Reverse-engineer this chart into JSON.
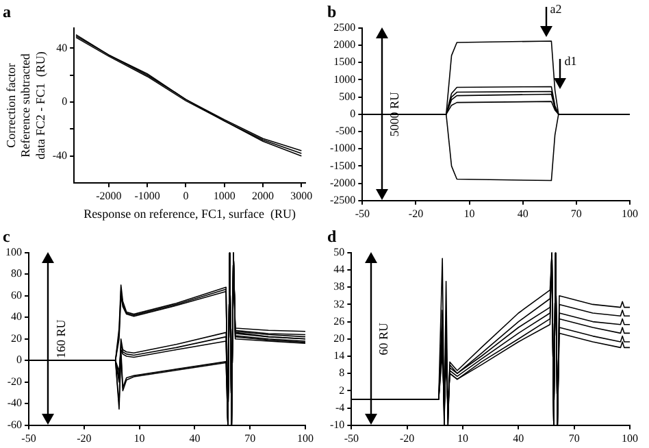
{
  "chart_data": [
    {
      "type": "line",
      "title": "a",
      "xlabel": "Response on reference, FC1, surface  (RU)",
      "ylabel": "Correction factor\nReference subtracted\ndata FC2 - FC1  (RU)",
      "x": [
        -2850,
        -2000,
        -1000,
        0,
        1000,
        2000,
        3000
      ],
      "xlim": [
        -2900,
        3100
      ],
      "xticks": [
        -2000,
        -1000,
        0,
        1000,
        2000,
        3000
      ],
      "ylim": [
        -60,
        55
      ],
      "yticks": [
        {
          "value": -40,
          "label": "-40"
        },
        {
          "value": -20,
          "label": null
        },
        0,
        {
          "value": 20,
          "label": null
        },
        40
      ],
      "grid": false,
      "legend": false,
      "marker": "none",
      "line_style": "solid",
      "series": [
        {
          "color": "#000000",
          "values": [
            50,
            35,
            21,
            2,
            -13,
            -27,
            -36
          ]
        },
        {
          "color": "#000000",
          "values": [
            49,
            35,
            20,
            2,
            -14,
            -28,
            -38
          ]
        },
        {
          "color": "#000000",
          "values": [
            48,
            34,
            19,
            1,
            -14,
            -29,
            -40
          ]
        }
      ]
    },
    {
      "type": "line",
      "title": "b",
      "x": [
        -50,
        -3,
        0,
        3,
        56,
        58,
        60,
        100
      ],
      "xlim": [
        -50,
        100
      ],
      "xticks": [
        -50,
        -20,
        10,
        40,
        70,
        100
      ],
      "ylim": [
        -2500,
        2500
      ],
      "yticks": [
        -2500,
        -2000,
        -1500,
        -1000,
        -500,
        0,
        500,
        1000,
        1500,
        2000,
        2500
      ],
      "grid": false,
      "legend": false,
      "marker": "none",
      "line_style": "solid",
      "annotations": [
        "5000 RU",
        {
          "text": "a2",
          "x": 53,
          "y": 2120
        },
        {
          "text": "d1",
          "x": 61,
          "y": 600
        }
      ],
      "series": [
        {
          "color": "#000000",
          "values": [
            0,
            0,
            1700,
            2080,
            2120,
            700,
            0,
            0
          ]
        },
        {
          "color": "#000000",
          "values": [
            0,
            0,
            600,
            780,
            800,
            250,
            0,
            0
          ]
        },
        {
          "color": "#000000",
          "values": [
            0,
            0,
            500,
            640,
            660,
            200,
            0,
            0
          ]
        },
        {
          "color": "#000000",
          "values": [
            0,
            0,
            420,
            540,
            580,
            180,
            0,
            0
          ]
        },
        {
          "color": "#000000",
          "values": [
            0,
            0,
            260,
            340,
            370,
            120,
            0,
            0
          ]
        },
        {
          "color": "#000000",
          "values": [
            0,
            0,
            -1500,
            -1880,
            -1920,
            -600,
            0,
            0
          ]
        }
      ]
    },
    {
      "type": "line",
      "title": "c",
      "x": [
        -50,
        -3,
        -1,
        0,
        1,
        3,
        7,
        30,
        57,
        58,
        59,
        60,
        61,
        62,
        80,
        100
      ],
      "xlim": [
        -50,
        100
      ],
      "xticks": [
        -50,
        -20,
        10,
        40,
        70,
        100
      ],
      "ylim": [
        -60,
        100
      ],
      "yticks": [
        -60,
        -40,
        -20,
        0,
        20,
        40,
        60,
        80,
        100
      ],
      "grid": false,
      "legend": false,
      "marker": "none",
      "line_style": "solid",
      "annotations": [
        "160 RU"
      ],
      "series": [
        {
          "color": "#000000",
          "values": [
            0,
            0,
            30,
            70,
            55,
            45,
            43,
            53,
            68,
            -60,
            100,
            -60,
            100,
            30,
            28,
            27
          ]
        },
        {
          "color": "#000000",
          "values": [
            0,
            0,
            25,
            65,
            52,
            44,
            42,
            52,
            66,
            -60,
            100,
            -60,
            100,
            28,
            25,
            24
          ]
        },
        {
          "color": "#000000",
          "values": [
            0,
            0,
            20,
            60,
            50,
            43,
            41,
            51,
            64,
            -60,
            100,
            -60,
            100,
            26,
            22,
            20
          ]
        },
        {
          "color": "#000000",
          "values": [
            0,
            0,
            -20,
            20,
            10,
            8,
            7,
            15,
            26,
            -60,
            100,
            -60,
            100,
            27,
            24,
            22
          ]
        },
        {
          "color": "#000000",
          "values": [
            0,
            0,
            -15,
            15,
            8,
            6,
            5,
            12,
            22,
            -60,
            100,
            -60,
            100,
            25,
            22,
            20
          ]
        },
        {
          "color": "#000000",
          "values": [
            0,
            0,
            -10,
            10,
            6,
            4,
            3,
            10,
            18,
            -60,
            100,
            -60,
            100,
            23,
            20,
            18
          ]
        },
        {
          "color": "#000000",
          "values": [
            0,
            0,
            -40,
            10,
            -25,
            -16,
            -14,
            -8,
            -1,
            -60,
            100,
            -60,
            100,
            22,
            19,
            17
          ]
        },
        {
          "color": "#000000",
          "values": [
            0,
            0,
            -45,
            5,
            -28,
            -18,
            -15,
            -9,
            -2,
            -60,
            100,
            -60,
            100,
            20,
            18,
            16
          ]
        }
      ]
    },
    {
      "type": "line",
      "title": "d",
      "x": [
        -50,
        -3,
        -1,
        0,
        1,
        2,
        3,
        7,
        20,
        40,
        57,
        58,
        59,
        60,
        61,
        62,
        80,
        95,
        96,
        97,
        100
      ],
      "xlim": [
        -50,
        100
      ],
      "xticks": [
        -50,
        -20,
        10,
        40,
        70,
        100
      ],
      "ylim": [
        -10,
        50
      ],
      "yticks": [
        -10,
        -4,
        2,
        8,
        14,
        20,
        26,
        32,
        38,
        44,
        50
      ],
      "grid": false,
      "legend": false,
      "marker": "none",
      "line_style": "solid",
      "annotations": [
        "60 RU"
      ],
      "series": [
        {
          "color": "#000000",
          "values": [
            -1,
            -1,
            48,
            -10,
            40,
            -10,
            12,
            9,
            17,
            29,
            37,
            50,
            -10,
            50,
            -10,
            35,
            32,
            31,
            33,
            31,
            31
          ]
        },
        {
          "color": "#000000",
          "values": [
            -1,
            -1,
            30,
            -10,
            25,
            -10,
            11,
            8,
            15,
            26,
            34,
            50,
            -10,
            50,
            -10,
            32,
            29,
            28,
            30,
            28,
            28
          ]
        },
        {
          "color": "#000000",
          "values": [
            -1,
            -1,
            25,
            -8,
            20,
            -8,
            10,
            8,
            14,
            24,
            31,
            50,
            -10,
            50,
            -10,
            29,
            26,
            25,
            27,
            25,
            25
          ]
        },
        {
          "color": "#000000",
          "values": [
            -1,
            -1,
            20,
            -6,
            18,
            -6,
            9,
            7,
            13,
            22,
            29,
            50,
            -10,
            50,
            -10,
            27,
            24,
            22,
            24,
            22,
            22
          ]
        },
        {
          "color": "#000000",
          "values": [
            -1,
            -1,
            18,
            -5,
            15,
            -5,
            8,
            6,
            12,
            20,
            27,
            50,
            -10,
            50,
            -10,
            24,
            21,
            19,
            21,
            19,
            19
          ]
        },
        {
          "color": "#000000",
          "values": [
            -1,
            -1,
            15,
            -4,
            12,
            -4,
            8,
            6,
            11,
            19,
            25,
            50,
            -10,
            50,
            -10,
            22,
            19,
            17,
            19,
            17,
            17
          ]
        }
      ]
    }
  ]
}
